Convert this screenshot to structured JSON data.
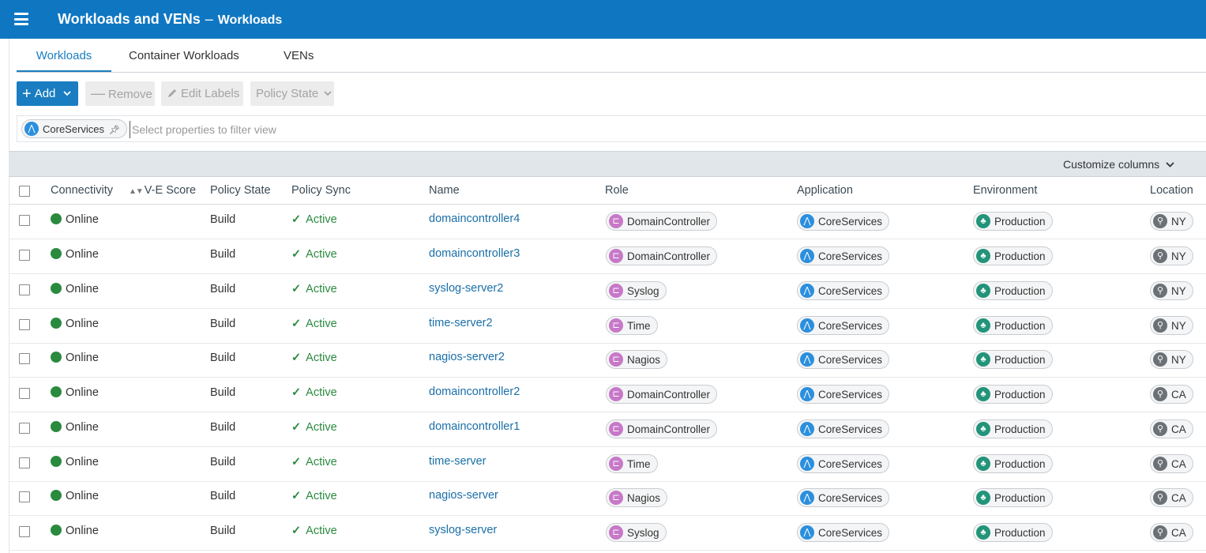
{
  "header": {
    "title": "Workloads and VENs",
    "separator": "–",
    "subtitle": "Workloads",
    "menu_icon": "hamburger-menu-icon",
    "color": "#0f77c2"
  },
  "tabs": [
    {
      "label": "Workloads",
      "active": true
    },
    {
      "label": "Container Workloads",
      "active": false
    },
    {
      "label": "VENs",
      "active": false
    }
  ],
  "toolbar": {
    "add_label": "Add",
    "remove_label": "Remove",
    "edit_labels_label": "Edit Labels",
    "policy_state_label": "Policy State"
  },
  "filter": {
    "chip_label": "CoreServices",
    "chip_icon": "application-icon",
    "pin_icon": "pin-icon",
    "placeholder": "Select properties to filter view"
  },
  "customize_columns": "Customize columns",
  "columns": {
    "connectivity": "Connectivity",
    "ve_score": "V-E Score",
    "policy_state": "Policy State",
    "policy_sync": "Policy Sync",
    "name": "Name",
    "role": "Role",
    "application": "Application",
    "environment": "Environment",
    "location": "Location"
  },
  "rows": [
    {
      "connectivity": "Online",
      "policy_state": "Build",
      "policy_sync": "Active",
      "name": "domaincontroller4",
      "role": "DomainController",
      "application": "CoreServices",
      "environment": "Production",
      "location": "NY"
    },
    {
      "connectivity": "Online",
      "policy_state": "Build",
      "policy_sync": "Active",
      "name": "domaincontroller3",
      "role": "DomainController",
      "application": "CoreServices",
      "environment": "Production",
      "location": "NY"
    },
    {
      "connectivity": "Online",
      "policy_state": "Build",
      "policy_sync": "Active",
      "name": "syslog-server2",
      "role": "Syslog",
      "application": "CoreServices",
      "environment": "Production",
      "location": "NY"
    },
    {
      "connectivity": "Online",
      "policy_state": "Build",
      "policy_sync": "Active",
      "name": "time-server2",
      "role": "Time",
      "application": "CoreServices",
      "environment": "Production",
      "location": "NY"
    },
    {
      "connectivity": "Online",
      "policy_state": "Build",
      "policy_sync": "Active",
      "name": "nagios-server2",
      "role": "Nagios",
      "application": "CoreServices",
      "environment": "Production",
      "location": "NY"
    },
    {
      "connectivity": "Online",
      "policy_state": "Build",
      "policy_sync": "Active",
      "name": "domaincontroller2",
      "role": "DomainController",
      "application": "CoreServices",
      "environment": "Production",
      "location": "CA"
    },
    {
      "connectivity": "Online",
      "policy_state": "Build",
      "policy_sync": "Active",
      "name": "domaincontroller1",
      "role": "DomainController",
      "application": "CoreServices",
      "environment": "Production",
      "location": "CA"
    },
    {
      "connectivity": "Online",
      "policy_state": "Build",
      "policy_sync": "Active",
      "name": "time-server",
      "role": "Time",
      "application": "CoreServices",
      "environment": "Production",
      "location": "CA"
    },
    {
      "connectivity": "Online",
      "policy_state": "Build",
      "policy_sync": "Active",
      "name": "nagios-server",
      "role": "Nagios",
      "application": "CoreServices",
      "environment": "Production",
      "location": "CA"
    },
    {
      "connectivity": "Online",
      "policy_state": "Build",
      "policy_sync": "Active",
      "name": "syslog-server",
      "role": "Syslog",
      "application": "CoreServices",
      "environment": "Production",
      "location": "CA"
    }
  ],
  "colors": {
    "online": "#2a8a3e",
    "link": "#1a6fa8",
    "role_icon": "#c778c8",
    "app_icon": "#2b8fdd",
    "env_icon": "#22947a",
    "loc_icon": "#6b7176"
  }
}
